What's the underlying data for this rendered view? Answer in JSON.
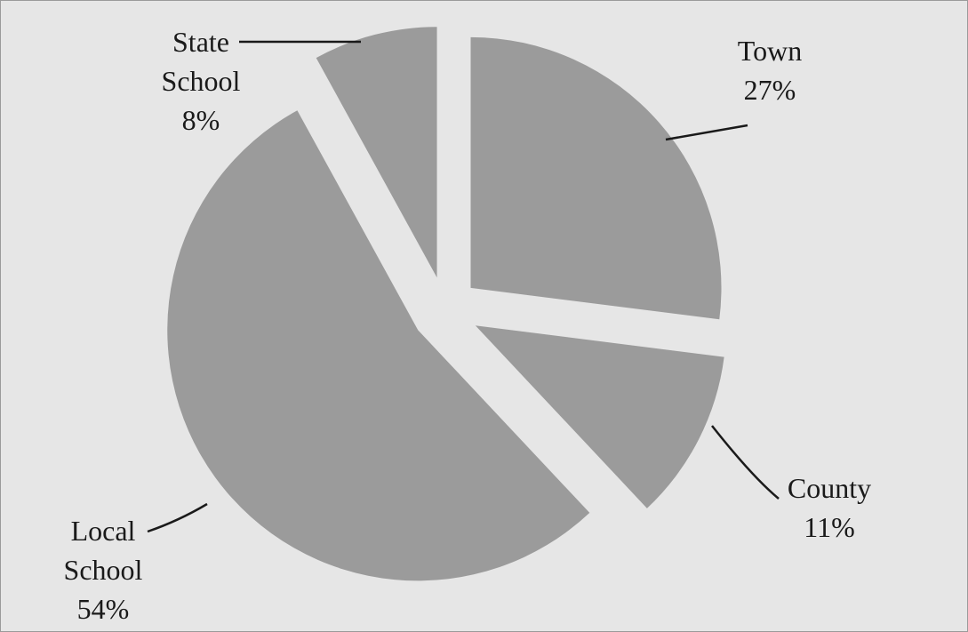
{
  "chart_data": {
    "type": "pie",
    "categories": [
      "Town",
      "County",
      "Local School",
      "State School"
    ],
    "values": [
      27,
      11,
      54,
      8
    ],
    "value_labels": [
      "27%",
      "11%",
      "54%",
      "8%"
    ],
    "color": "#9b9b9b"
  }
}
